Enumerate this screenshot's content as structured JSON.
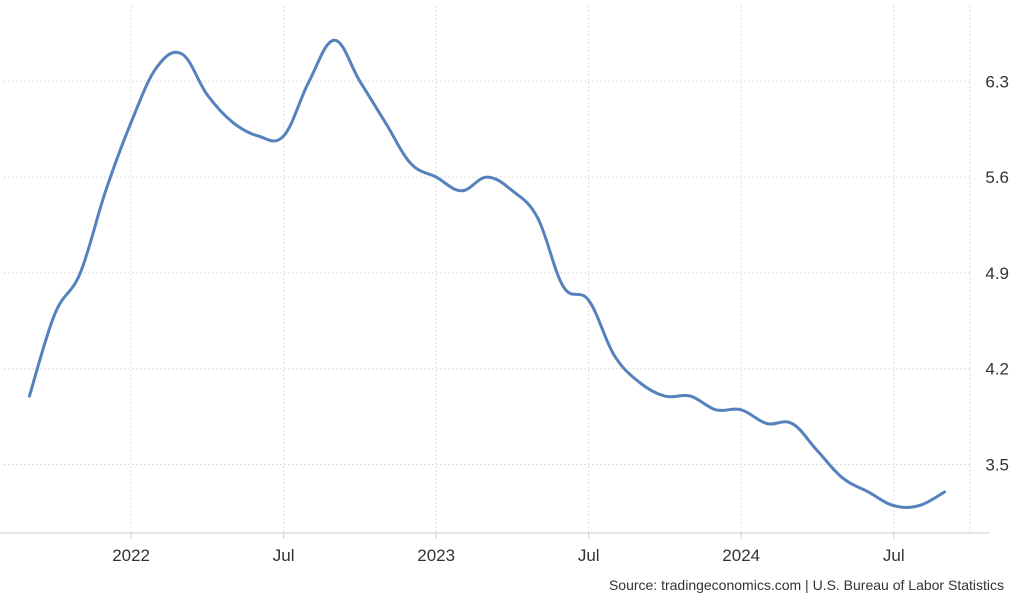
{
  "chart_data": {
    "type": "line",
    "title": "",
    "xlabel": "",
    "ylabel": "",
    "x_tick_labels": [
      "2022",
      "Jul",
      "2023",
      "Jul",
      "2024",
      "Jul"
    ],
    "y_tick_labels": [
      "6.3",
      "5.6",
      "4.9",
      "4.2",
      "3.5"
    ],
    "ylim": [
      3.0,
      6.85
    ],
    "xlim": [
      "2021-08",
      "2024-10"
    ],
    "grid": true,
    "legend": "none",
    "series": [
      {
        "color": "#5582bd",
        "x": [
          "2021-09",
          "2021-10",
          "2021-11",
          "2021-12",
          "2022-01",
          "2022-02",
          "2022-03",
          "2022-04",
          "2022-05",
          "2022-06",
          "2022-07",
          "2022-08",
          "2022-09",
          "2022-10",
          "2022-11",
          "2022-12",
          "2023-01",
          "2023-02",
          "2023-03",
          "2023-04",
          "2023-05",
          "2023-06",
          "2023-07",
          "2023-08",
          "2023-09",
          "2023-10",
          "2023-11",
          "2023-12",
          "2024-01",
          "2024-02",
          "2024-03",
          "2024-04",
          "2024-05",
          "2024-06",
          "2024-07",
          "2024-08",
          "2024-09"
        ],
        "values": [
          4.0,
          4.6,
          4.9,
          5.5,
          6.0,
          6.4,
          6.5,
          6.2,
          6.0,
          5.9,
          5.9,
          6.3,
          6.6,
          6.3,
          6.0,
          5.7,
          5.6,
          5.5,
          5.6,
          5.5,
          5.3,
          4.8,
          4.7,
          4.3,
          4.1,
          4.0,
          4.0,
          3.9,
          3.9,
          3.8,
          3.8,
          3.6,
          3.4,
          3.3,
          3.2,
          3.2,
          3.3
        ]
      }
    ]
  },
  "footer": {
    "source": "Source: tradingeconomics.com | U.S. Bureau of Labor Statistics"
  }
}
